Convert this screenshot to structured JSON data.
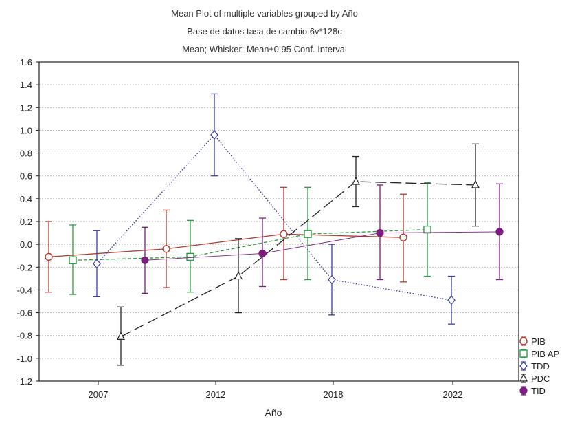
{
  "chart_data": {
    "type": "line",
    "title_lines": [
      "Mean Plot of multiple variables grouped by  Año",
      "Base de datos tasa de cambio 6v*128c",
      "Mean; Whisker: Mean±0.95 Conf. Interval"
    ],
    "xlabel": "Año",
    "ylabel": "",
    "ylim": [
      -1.2,
      1.6
    ],
    "yticks": [
      "1.6",
      "1.4",
      "1.2",
      "1.0",
      "0.8",
      "0.6",
      "0.4",
      "0.2",
      "0.0",
      "-0.2",
      "-0.4",
      "-0.6",
      "-0.8",
      "-1.0",
      "-1.2"
    ],
    "categories": [
      "2007",
      "2012",
      "2018",
      "2022"
    ],
    "grid": true,
    "legend_position": "bottom-right",
    "series": [
      {
        "name": "PIB",
        "color": "#b03a2e",
        "marker": "circle-open",
        "dash": "solid",
        "values": [
          -0.11,
          -0.04,
          0.09,
          0.06
        ],
        "lower": [
          -0.42,
          -0.38,
          -0.31,
          -0.33
        ],
        "upper": [
          0.2,
          0.3,
          0.5,
          0.44
        ]
      },
      {
        "name": "PIB AP",
        "color": "#2e9e44",
        "marker": "square-open",
        "dash": "short",
        "values": [
          -0.14,
          -0.11,
          0.09,
          0.13
        ],
        "lower": [
          -0.44,
          -0.42,
          -0.31,
          -0.28
        ],
        "upper": [
          0.17,
          0.21,
          0.5,
          0.54
        ]
      },
      {
        "name": "TDD",
        "color": "#3a3f9f",
        "marker": "diamond-open",
        "dash": "dotted",
        "values": [
          -0.17,
          0.96,
          -0.31,
          -0.49
        ],
        "lower": [
          -0.46,
          0.6,
          -0.62,
          -0.7
        ],
        "upper": [
          0.12,
          1.32,
          0.0,
          -0.28
        ]
      },
      {
        "name": "PDC",
        "color": "#222222",
        "marker": "triangle-open",
        "dash": "long",
        "values": [
          -0.81,
          -0.28,
          0.55,
          0.52
        ],
        "lower": [
          -1.06,
          -0.6,
          0.33,
          0.16
        ],
        "upper": [
          -0.55,
          0.05,
          0.77,
          0.88
        ]
      },
      {
        "name": "TID",
        "color": "#7a1f7f",
        "marker": "circle-filled",
        "dash": "solid-thin",
        "values": [
          -0.14,
          -0.08,
          0.1,
          0.11
        ],
        "lower": [
          -0.43,
          -0.37,
          -0.31,
          -0.31
        ],
        "upper": [
          0.15,
          0.23,
          0.52,
          0.53
        ]
      }
    ]
  }
}
